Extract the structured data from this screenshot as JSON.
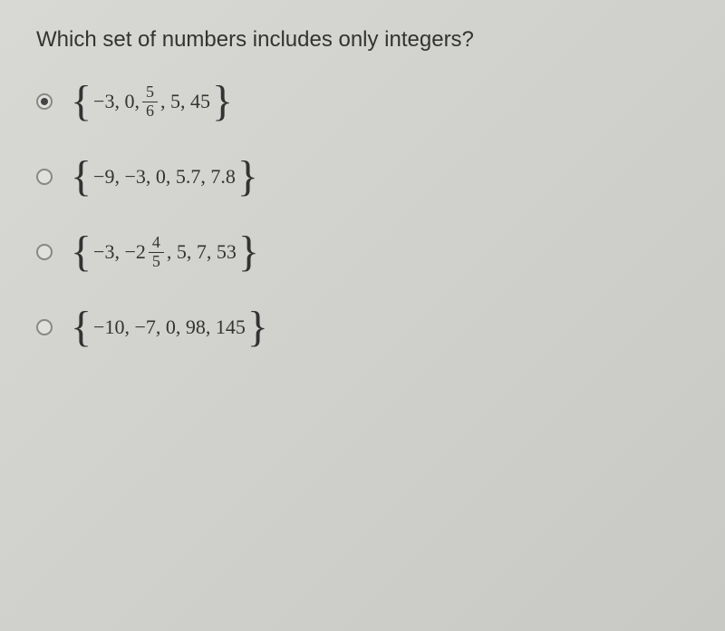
{
  "question": {
    "text": "Which set of numbers includes only integers?"
  },
  "options": {
    "a": {
      "selected": true,
      "parts": {
        "p1": "−3, 0, ",
        "frac_num": "5",
        "frac_den": "6",
        "p2": ", 5, 45"
      }
    },
    "b": {
      "selected": false,
      "content": "−9, −3, 0, 5.7, 7.8"
    },
    "c": {
      "selected": false,
      "parts": {
        "p1": "−3, −2",
        "frac_num": "4",
        "frac_den": "5",
        "p2": ", 5, 7, 53"
      }
    },
    "d": {
      "selected": false,
      "content": "−10, −7, 0, 98, 145"
    }
  }
}
